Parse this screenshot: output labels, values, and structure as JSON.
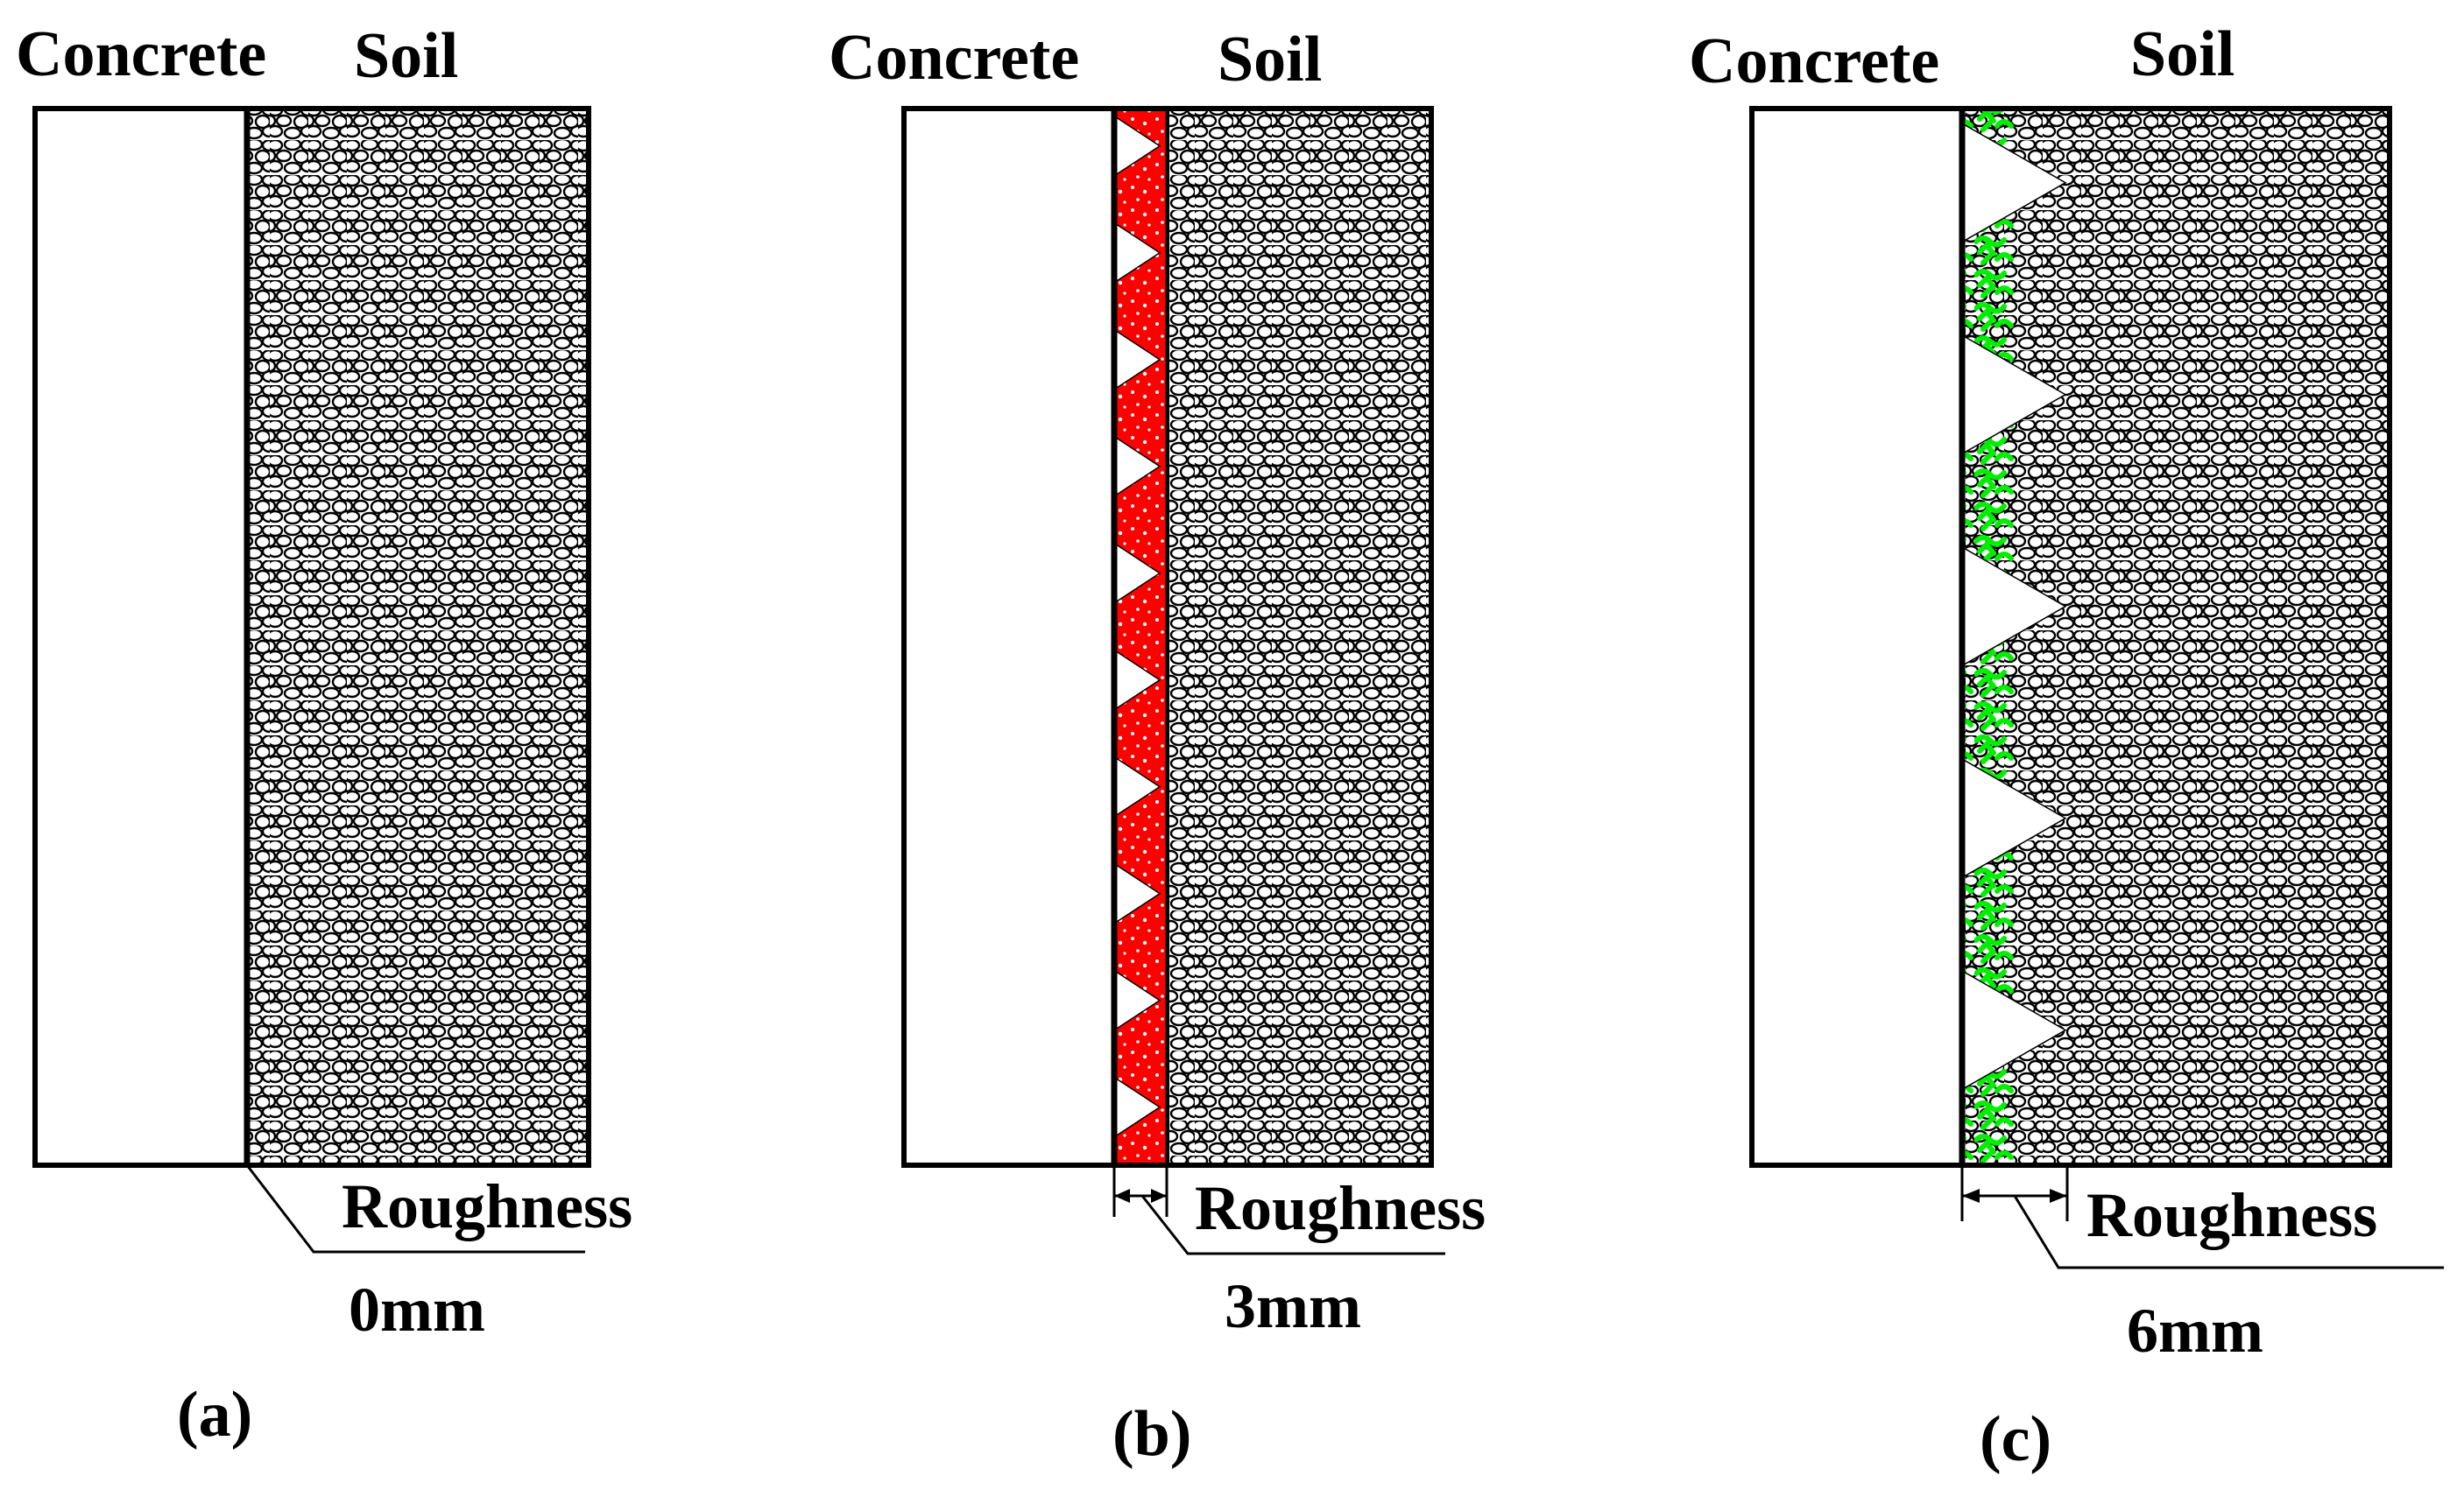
{
  "panels": [
    {
      "id": "a",
      "caption": "(a)",
      "concrete_label": "Concrete",
      "soil_label": "Soil",
      "roughness_label": "Roughness",
      "roughness_value_label": "0mm",
      "roughness_mm": 0,
      "layer_color": ""
    },
    {
      "id": "b",
      "caption": "(b)",
      "concrete_label": "Concrete",
      "soil_label": "Soil",
      "roughness_label": "Roughness",
      "roughness_value_label": "3mm",
      "roughness_mm": 3,
      "layer_color": "#ff0000"
    },
    {
      "id": "c",
      "caption": "(c)",
      "concrete_label": "Concrete",
      "soil_label": "Soil",
      "roughness_label": "Roughness",
      "roughness_value_label": "6mm",
      "roughness_mm": 6,
      "layer_color": "#00ee00"
    }
  ]
}
